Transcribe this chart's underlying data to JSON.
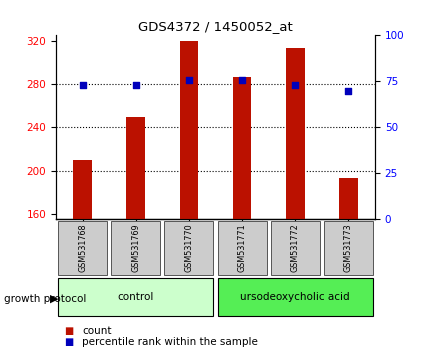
{
  "title": "GDS4372 / 1450052_at",
  "categories": [
    "GSM531768",
    "GSM531769",
    "GSM531770",
    "GSM531771",
    "GSM531772",
    "GSM531773"
  ],
  "counts": [
    210,
    250,
    320,
    287,
    313,
    193
  ],
  "percentiles": [
    73,
    73,
    76,
    76,
    73,
    70
  ],
  "ylim_left": [
    155,
    325
  ],
  "ylim_right": [
    0,
    100
  ],
  "yticks_left": [
    160,
    200,
    240,
    280,
    320
  ],
  "yticks_right": [
    0,
    25,
    50,
    75,
    100
  ],
  "bar_color": "#bb1100",
  "dot_color": "#0000bb",
  "grid_color": "black",
  "group1_label": "control",
  "group2_label": "ursodeoxycholic acid",
  "group1_color": "#ccffcc",
  "group2_color": "#55ee55",
  "group1_indices": [
    0,
    1,
    2
  ],
  "group2_indices": [
    3,
    4,
    5
  ],
  "protocol_label": "growth protocol",
  "legend_count": "count",
  "legend_percentile": "percentile rank within the sample",
  "left_tick_color": "red",
  "right_tick_color": "blue",
  "bar_width": 0.35,
  "figsize": [
    4.31,
    3.54
  ],
  "dpi": 100
}
